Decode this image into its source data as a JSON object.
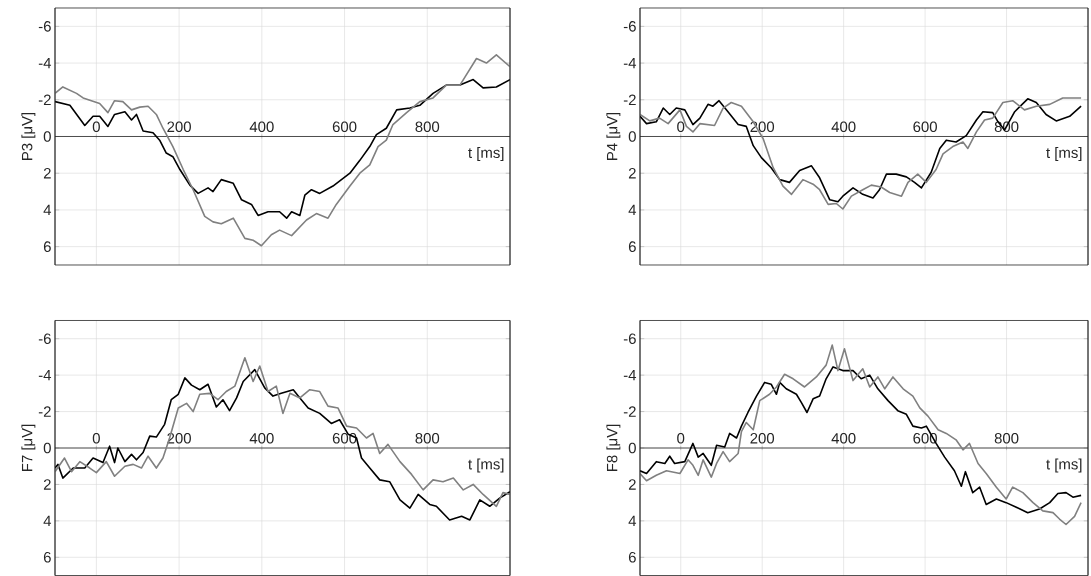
{
  "chart_data": [
    {
      "type": "line",
      "ylabel": "P3 [μV]",
      "xlabel": "t [ms]",
      "xlim": [
        -100,
        1000
      ],
      "ylim": [
        7,
        -7
      ],
      "xticks": [
        0,
        200,
        400,
        600,
        800
      ],
      "yticks": [
        -6,
        -4,
        -2,
        0,
        2,
        4,
        6
      ],
      "grid": true,
      "series": [
        {
          "color": "#000000",
          "x": [
            -100,
            -64,
            -28,
            -8,
            8,
            28,
            44,
            69,
            85,
            97,
            113,
            137,
            153,
            169,
            185,
            202,
            226,
            246,
            270,
            282,
            302,
            331,
            351,
            375,
            391,
            415,
            443,
            460,
            472,
            492,
            504,
            520,
            540,
            572,
            613,
            637,
            661,
            677,
            701,
            726,
            758,
            782,
            814,
            846,
            879,
            911,
            935,
            967,
            1000
          ],
          "values": [
            -1.9,
            -1.7,
            -0.6,
            -1.1,
            -1.1,
            -0.55,
            -1.2,
            -1.35,
            -0.9,
            -1.2,
            -0.3,
            -0.2,
            0.2,
            0.9,
            1.1,
            1.8,
            2.65,
            3.1,
            2.8,
            3.0,
            2.35,
            2.55,
            3.45,
            3.7,
            4.3,
            4.1,
            4.1,
            4.45,
            4.1,
            4.3,
            3.2,
            2.9,
            3.1,
            2.7,
            2.0,
            1.3,
            0.55,
            -0.1,
            -0.45,
            -1.45,
            -1.55,
            -1.7,
            -2.35,
            -2.8,
            -2.8,
            -3.1,
            -2.65,
            -2.7,
            -3.1
          ]
        },
        {
          "color": "#808080",
          "x": [
            -100,
            -81,
            -48,
            -32,
            8,
            28,
            44,
            64,
            85,
            105,
            125,
            145,
            161,
            185,
            210,
            234,
            262,
            282,
            302,
            331,
            359,
            379,
            399,
            423,
            443,
            472,
            508,
            532,
            560,
            580,
            613,
            637,
            661,
            681,
            701,
            717,
            750,
            782,
            814,
            846,
            879,
            919,
            943,
            967,
            1000
          ],
          "values": [
            -2.35,
            -2.7,
            -2.35,
            -2.1,
            -1.8,
            -1.3,
            -1.95,
            -1.9,
            -1.45,
            -1.6,
            -1.65,
            -1.2,
            -0.45,
            0.55,
            1.8,
            2.9,
            4.35,
            4.65,
            4.75,
            4.45,
            5.55,
            5.65,
            5.95,
            5.35,
            5.1,
            5.4,
            4.55,
            4.2,
            4.45,
            3.7,
            2.7,
            2.0,
            1.55,
            0.55,
            0.2,
            -0.65,
            -1.3,
            -1.9,
            -2.1,
            -2.8,
            -2.8,
            -4.25,
            -4.0,
            -4.45,
            -3.8
          ]
        }
      ]
    },
    {
      "type": "line",
      "ylabel": "P4 [μV]",
      "xlabel": "t [ms]",
      "xlim": [
        -100,
        1000
      ],
      "ylim": [
        7,
        -7
      ],
      "xticks": [
        0,
        200,
        400,
        600,
        800
      ],
      "yticks": [
        -6,
        -4,
        -2,
        0,
        2,
        4,
        6
      ],
      "grid": true,
      "series": [
        {
          "color": "#000000",
          "x": [
            -100,
            -84,
            -60,
            -43,
            -27,
            -11,
            10,
            30,
            47,
            67,
            79,
            94,
            116,
            141,
            161,
            178,
            198,
            222,
            243,
            267,
            292,
            321,
            341,
            366,
            386,
            398,
            423,
            447,
            472,
            488,
            505,
            529,
            554,
            574,
            591,
            615,
            636,
            652,
            676,
            701,
            726,
            742,
            766,
            779,
            795,
            820,
            852,
            873,
            897,
            922,
            955,
            983
          ],
          "values": [
            -1.1,
            -0.7,
            -0.8,
            -1.55,
            -1.2,
            -1.55,
            -1.45,
            -0.65,
            -1.0,
            -1.75,
            -1.65,
            -1.95,
            -1.35,
            -0.65,
            -0.55,
            0.5,
            1.15,
            1.7,
            2.35,
            2.5,
            1.85,
            1.6,
            2.25,
            3.45,
            3.55,
            3.25,
            2.8,
            3.15,
            3.35,
            2.9,
            2.05,
            2.05,
            2.2,
            2.5,
            2.8,
            1.95,
            0.65,
            0.2,
            0.3,
            -0.05,
            -0.9,
            -1.35,
            -1.3,
            -0.8,
            -0.35,
            -1.35,
            -2.05,
            -1.85,
            -1.2,
            -0.85,
            -1.1,
            -1.65
          ]
        },
        {
          "color": "#808080",
          "x": [
            -100,
            -76,
            -52,
            -31,
            -2,
            14,
            30,
            47,
            83,
            104,
            124,
            149,
            178,
            202,
            227,
            251,
            272,
            300,
            325,
            341,
            362,
            382,
            398,
            419,
            447,
            468,
            492,
            513,
            542,
            558,
            582,
            603,
            627,
            644,
            668,
            693,
            705,
            726,
            746,
            766,
            791,
            815,
            844,
            873,
            906,
            938,
            983
          ],
          "values": [
            -1.2,
            -0.85,
            -1.0,
            -0.7,
            -1.45,
            -0.55,
            -0.25,
            -0.7,
            -0.6,
            -1.55,
            -1.85,
            -1.65,
            -0.8,
            0.1,
            1.7,
            2.7,
            3.15,
            2.35,
            2.6,
            2.9,
            3.7,
            3.65,
            3.95,
            3.25,
            2.9,
            2.65,
            2.75,
            3.05,
            3.25,
            2.5,
            2.05,
            2.5,
            1.8,
            0.95,
            0.55,
            0.3,
            0.65,
            -0.25,
            -0.9,
            -1.0,
            -1.85,
            -1.95,
            -1.45,
            -1.65,
            -1.75,
            -2.1,
            -2.1
          ]
        }
      ]
    },
    {
      "type": "line",
      "ylabel": "F7 [μV]",
      "xlabel": "t [ms]",
      "xlim": [
        -100,
        1000
      ],
      "ylim": [
        7,
        -7
      ],
      "xticks": [
        0,
        200,
        400,
        600,
        800
      ],
      "yticks": [
        -6,
        -4,
        -2,
        0,
        2,
        4,
        6
      ],
      "grid": true,
      "series": [
        {
          "color": "#000000",
          "x": [
            -100,
            -93,
            -81,
            -56,
            -28,
            -8,
            16,
            32,
            44,
            52,
            69,
            85,
            97,
            113,
            129,
            145,
            165,
            181,
            198,
            214,
            230,
            250,
            270,
            290,
            306,
            322,
            339,
            355,
            383,
            407,
            427,
            447,
            476,
            492,
            512,
            540,
            568,
            588,
            609,
            629,
            641,
            661,
            685,
            709,
            734,
            758,
            778,
            806,
            822,
            854,
            883,
            903,
            927,
            951,
            975,
            1000
          ],
          "values": [
            1.1,
            0.9,
            1.65,
            1.1,
            1.1,
            0.55,
            0.8,
            -0.1,
            0.8,
            0,
            0.75,
            0.35,
            0.65,
            0.25,
            -0.65,
            -0.6,
            -1.3,
            -2.65,
            -2.95,
            -3.85,
            -3.45,
            -3.2,
            -3.5,
            -2.25,
            -2.65,
            -2.05,
            -2.75,
            -3.65,
            -4.3,
            -3.3,
            -2.85,
            -3.0,
            -3.2,
            -2.75,
            -2.2,
            -1.9,
            -1.35,
            -1.55,
            -0.75,
            -0.55,
            0.55,
            1.1,
            1.75,
            1.85,
            2.85,
            3.3,
            2.55,
            3.1,
            3.2,
            3.95,
            3.75,
            3.95,
            2.85,
            3.2,
            2.75,
            2.4
          ]
        },
        {
          "color": "#808080",
          "x": [
            -100,
            -77,
            -60,
            -40,
            -16,
            0,
            24,
            44,
            69,
            89,
            109,
            125,
            145,
            161,
            177,
            198,
            218,
            234,
            250,
            274,
            294,
            314,
            335,
            359,
            379,
            395,
            415,
            435,
            451,
            468,
            492,
            516,
            540,
            560,
            584,
            605,
            629,
            653,
            669,
            685,
            705,
            734,
            762,
            790,
            814,
            838,
            863,
            887,
            911,
            935,
            967,
            983,
            1000
          ],
          "values": [
            1.3,
            0.55,
            1.3,
            0.75,
            1.1,
            1.35,
            0.75,
            1.55,
            1.0,
            0.9,
            1.1,
            0.45,
            1.1,
            0.55,
            -0.55,
            -2.2,
            -2.45,
            -2.0,
            -2.95,
            -3.0,
            -2.65,
            -3.1,
            -3.4,
            -4.95,
            -3.65,
            -4.5,
            -3.1,
            -3.4,
            -1.9,
            -3.0,
            -2.75,
            -3.2,
            -3.1,
            -2.3,
            -2.2,
            -1.2,
            -1.1,
            -0.55,
            -0.8,
            0.3,
            -0.2,
            0.75,
            1.45,
            2.3,
            1.75,
            1.85,
            1.65,
            2.3,
            2.0,
            2.55,
            3.2,
            2.45,
            2.55
          ]
        }
      ]
    },
    {
      "type": "line",
      "ylabel": "F8 [μV]",
      "xlabel": "t [ms]",
      "xlim": [
        -100,
        1000
      ],
      "ylim": [
        7,
        -7
      ],
      "xticks": [
        0,
        200,
        400,
        600,
        800
      ],
      "yticks": [
        -6,
        -4,
        -2,
        0,
        2,
        4,
        6
      ],
      "grid": true,
      "series": [
        {
          "color": "#000000",
          "x": [
            -100,
            -84,
            -60,
            -39,
            -27,
            -15,
            10,
            30,
            43,
            55,
            75,
            88,
            108,
            120,
            137,
            149,
            165,
            186,
            206,
            222,
            235,
            243,
            259,
            284,
            296,
            310,
            325,
            341,
            357,
            374,
            398,
            423,
            443,
            464,
            484,
            509,
            533,
            554,
            570,
            591,
            603,
            627,
            648,
            672,
            689,
            699,
            717,
            734,
            750,
            775,
            799,
            824,
            852,
            881,
            906,
            926,
            946,
            963,
            983
          ],
          "values": [
            1.25,
            1.4,
            0.75,
            0.85,
            0.45,
            0.85,
            0.75,
            -0.25,
            0.5,
            0.3,
            0.95,
            -0.15,
            -0.05,
            -0.8,
            -0.55,
            -1.2,
            -1.95,
            -2.85,
            -3.6,
            -3.5,
            -2.95,
            -3.6,
            -3.25,
            -2.95,
            -2.5,
            -1.95,
            -2.7,
            -2.85,
            -3.8,
            -4.45,
            -4.25,
            -4.25,
            -3.8,
            -4.0,
            -3.25,
            -2.6,
            -2.05,
            -1.85,
            -1.2,
            -1.1,
            -1.2,
            -0.25,
            0.5,
            1.25,
            2.1,
            1.3,
            2.45,
            2.15,
            3.1,
            2.8,
            3.0,
            3.25,
            3.55,
            3.35,
            3.0,
            2.5,
            2.45,
            2.7,
            2.6
          ]
        },
        {
          "color": "#808080",
          "x": [
            -100,
            -84,
            -60,
            -35,
            -2,
            18,
            30,
            43,
            55,
            75,
            88,
            104,
            120,
            141,
            149,
            161,
            178,
            194,
            218,
            235,
            255,
            276,
            304,
            333,
            357,
            372,
            386,
            402,
            423,
            447,
            464,
            484,
            501,
            521,
            546,
            570,
            587,
            607,
            632,
            652,
            676,
            693,
            709,
            730,
            750,
            775,
            799,
            815,
            840,
            865,
            889,
            914,
            930,
            946,
            967,
            983
          ],
          "values": [
            1.4,
            1.8,
            1.5,
            1.25,
            1.4,
            0.65,
            0.95,
            1.5,
            0.65,
            1.6,
            0.85,
            0.2,
            0.75,
            0.3,
            -0.9,
            -1.4,
            -1.0,
            -2.6,
            -2.95,
            -3.35,
            -4.05,
            -3.8,
            -3.35,
            -3.9,
            -4.55,
            -5.65,
            -4.25,
            -5.45,
            -3.7,
            -4.35,
            -3.35,
            -3.9,
            -3.25,
            -3.9,
            -3.25,
            -2.85,
            -2.2,
            -1.75,
            -1.0,
            -0.8,
            -0.45,
            0.1,
            -0.25,
            0.85,
            1.4,
            2.15,
            2.8,
            2.15,
            2.45,
            3.0,
            3.45,
            3.55,
            3.9,
            4.2,
            3.75,
            3.0
          ]
        }
      ]
    }
  ]
}
